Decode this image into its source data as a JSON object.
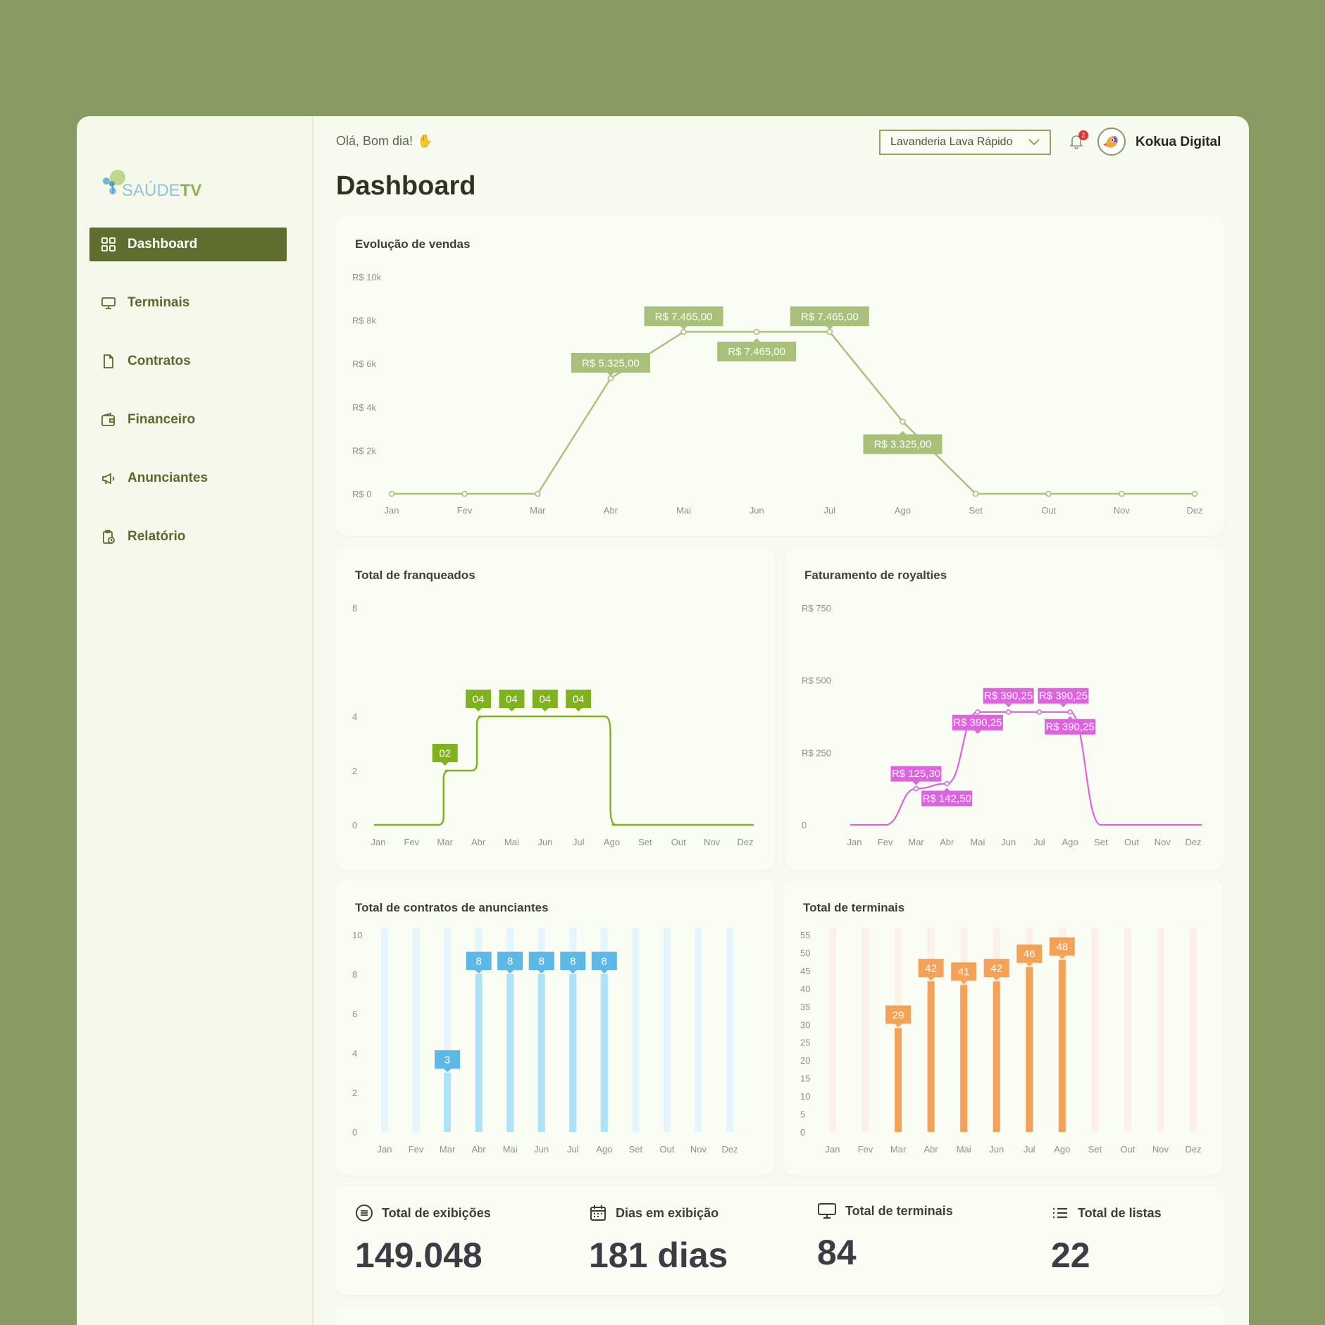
{
  "sidebar": {
    "logo": {
      "part1": "SAÚDE",
      "part2": "TV"
    },
    "items": [
      {
        "label": "Dashboard",
        "icon": "grid-icon",
        "active": true
      },
      {
        "label": "Terminais",
        "icon": "monitor-icon"
      },
      {
        "label": "Contratos",
        "icon": "file-icon"
      },
      {
        "label": "Financeiro",
        "icon": "wallet-icon"
      },
      {
        "label": "Anunciantes",
        "icon": "megaphone-icon"
      },
      {
        "label": "Relatório",
        "icon": "clipboard-clock-icon"
      }
    ]
  },
  "header": {
    "greeting": "Olá, Bom dia!",
    "title": "Dashboard",
    "store_select": "Lavanderia Lava Rápido",
    "notifications_count": "2",
    "user_name": "Kokua Digital"
  },
  "colors": {
    "sales": "#a8c07a",
    "franchise": "#7fb21c",
    "royalties": "#de63e0",
    "contracts": "#5cb8e6",
    "contracts_bar": "#ade2f7",
    "terminals": "#f4a257",
    "active_nav": "#5d6e2e"
  },
  "chart_data": [
    {
      "id": "sales",
      "type": "line",
      "title": "Evolução de vendas",
      "categories": [
        "Jan",
        "Fev",
        "Mar",
        "Abr",
        "Mai",
        "Jun",
        "Jul",
        "Ago",
        "Set",
        "Out",
        "Nov",
        "Dez"
      ],
      "values": [
        0,
        0,
        0,
        5325,
        7465,
        7465,
        7465,
        3325,
        0,
        0,
        0,
        0
      ],
      "labels": [
        "",
        "",
        "",
        "R$ 5.325,00",
        "R$ 7.465,00",
        "R$ 7.465,00",
        "R$ 7.465,00",
        "R$ 3.325,00",
        "",
        "",
        "",
        ""
      ],
      "y_ticks": [
        "R$ 0",
        "R$ 2k",
        "R$ 4k",
        "R$ 6k",
        "R$ 8k",
        "R$ 10k"
      ],
      "ylim": [
        0,
        10000
      ]
    },
    {
      "id": "franchise",
      "type": "line",
      "title": "Total de franqueados",
      "categories": [
        "Jan",
        "Fev",
        "Mar",
        "Abr",
        "Mai",
        "Jun",
        "Jul",
        "Ago",
        "Set",
        "Out",
        "Nov",
        "Dez"
      ],
      "values": [
        0,
        0,
        2,
        4,
        4,
        4,
        4,
        0,
        0,
        0,
        0,
        0
      ],
      "labels": [
        "",
        "",
        "02",
        "04",
        "04",
        "04",
        "04",
        "",
        "",
        "",
        "",
        ""
      ],
      "y_ticks": [
        "0",
        "2",
        "4",
        "8"
      ],
      "ylim": [
        0,
        8
      ]
    },
    {
      "id": "royalties",
      "type": "line",
      "title": "Faturamento de royalties",
      "categories": [
        "Jan",
        "Fev",
        "Mar",
        "Abr",
        "Mai",
        "Jun",
        "Jul",
        "Ago",
        "Set",
        "Out",
        "Nov",
        "Dez"
      ],
      "values": [
        0,
        0,
        125.3,
        142.5,
        390.25,
        390.25,
        390.25,
        390.25,
        0,
        0,
        0,
        0
      ],
      "labels": [
        "",
        "",
        "R$ 125,30",
        "R$ 142,50",
        "R$ 390,25",
        "R$ 390,25",
        "R$ 390,25",
        "R$ 390,25",
        "",
        "",
        "",
        ""
      ],
      "y_ticks": [
        "0",
        "R$ 250",
        "R$ 500",
        "R$ 750"
      ],
      "ylim": [
        0,
        750
      ]
    },
    {
      "id": "contracts",
      "type": "bar",
      "title": "Total de contratos de anunciantes",
      "categories": [
        "Jan",
        "Fev",
        "Mar",
        "Abr",
        "Mai",
        "Jun",
        "Jul",
        "Ago",
        "Set",
        "Out",
        "Nov",
        "Dez"
      ],
      "values": [
        0,
        0,
        3,
        8,
        8,
        8,
        8,
        8,
        0,
        0,
        0,
        0
      ],
      "y_ticks": [
        "0",
        "2",
        "4",
        "6",
        "8",
        "10"
      ],
      "ylim": [
        0,
        10
      ]
    },
    {
      "id": "terminals",
      "type": "bar",
      "title": "Total de terminais",
      "categories": [
        "Jan",
        "Fev",
        "Mar",
        "Abr",
        "Mai",
        "Jun",
        "Jul",
        "Ago",
        "Set",
        "Out",
        "Nov",
        "Dez"
      ],
      "values": [
        0,
        0,
        29,
        42,
        41,
        42,
        46,
        48,
        0,
        0,
        0,
        0
      ],
      "y_ticks": [
        "0",
        "5",
        "10",
        "15",
        "20",
        "25",
        "30",
        "35",
        "40",
        "45",
        "50",
        "55"
      ],
      "ylim": [
        0,
        55
      ]
    }
  ],
  "stats": [
    {
      "label": "Total de exibições",
      "value": "149.048",
      "icon": "list-circle-icon"
    },
    {
      "label": "Dias em exibição",
      "value": "181 dias",
      "icon": "calendar-icon"
    },
    {
      "label": "Total de terminais",
      "value": "84",
      "icon": "monitor-icon"
    },
    {
      "label": "Total de listas",
      "value": "22",
      "icon": "list-icon"
    }
  ]
}
